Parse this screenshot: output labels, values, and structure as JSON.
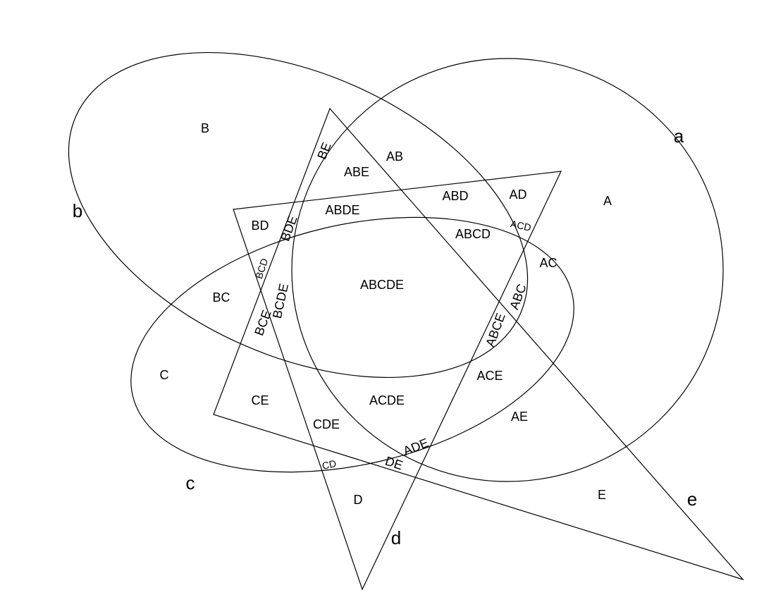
{
  "colors": {
    "stroke": "#000000",
    "background": "#ffffff"
  },
  "set_labels": {
    "a": "a",
    "b": "b",
    "c": "c",
    "d": "d",
    "e": "e"
  },
  "regions": {
    "A": "A",
    "B": "B",
    "C": "C",
    "D": "D",
    "E": "E",
    "AB": "AB",
    "AC": "AC",
    "AD": "AD",
    "AE": "AE",
    "BC": "BC",
    "BD": "BD",
    "BE": "BE",
    "CD": "CD",
    "CE": "CE",
    "DE": "DE",
    "ABC": "ABC",
    "ABD": "ABD",
    "ABE": "ABE",
    "ACD": "ACD",
    "ACE": "ACE",
    "ADE": "ADE",
    "BCD": "BCD",
    "BCE": "BCE",
    "BDE": "BDE",
    "CDE": "CDE",
    "ABCD": "ABCD",
    "ABCE": "ABCE",
    "ABDE": "ABDE",
    "ACDE": "ACDE",
    "BCDE": "BCDE",
    "ABCDE": "ABCDE"
  }
}
